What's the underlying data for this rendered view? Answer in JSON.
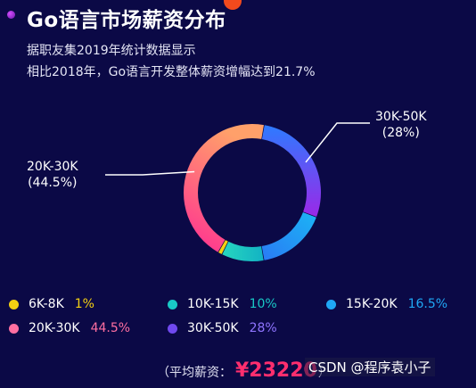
{
  "title": "Go语言市场薪资分布",
  "description": [
    "据职友集2019年统计数据显示",
    "相比2018年，Go语言开发整体薪资增幅达到21.7%"
  ],
  "chart_data": {
    "type": "pie",
    "subtype": "donut",
    "categories": [
      "6K-8K",
      "10K-15K",
      "15K-20K",
      "20K-30K",
      "30K-50K"
    ],
    "values": [
      1,
      10,
      16.5,
      44.5,
      28
    ],
    "value_labels": [
      "1%",
      "10%",
      "16.5%",
      "44.5%",
      "28%"
    ],
    "colors": [
      "#f4d012",
      "#19c8c6",
      "#1fa7f5",
      "#ff6fa1",
      "#7049ef"
    ],
    "callouts": [
      {
        "category": "30K-50K",
        "line1": "30K-50K",
        "line2": "(28%)",
        "side": "right"
      },
      {
        "category": "20K-30K",
        "line1": "20K-30K",
        "line2": "(44.5%)",
        "side": "left"
      }
    ],
    "legend_position": "bottom"
  },
  "footer": {
    "label": "（平均薪资：",
    "amount": "¥23220",
    "close": "）"
  },
  "watermark": "CSDN @程序袁小子"
}
